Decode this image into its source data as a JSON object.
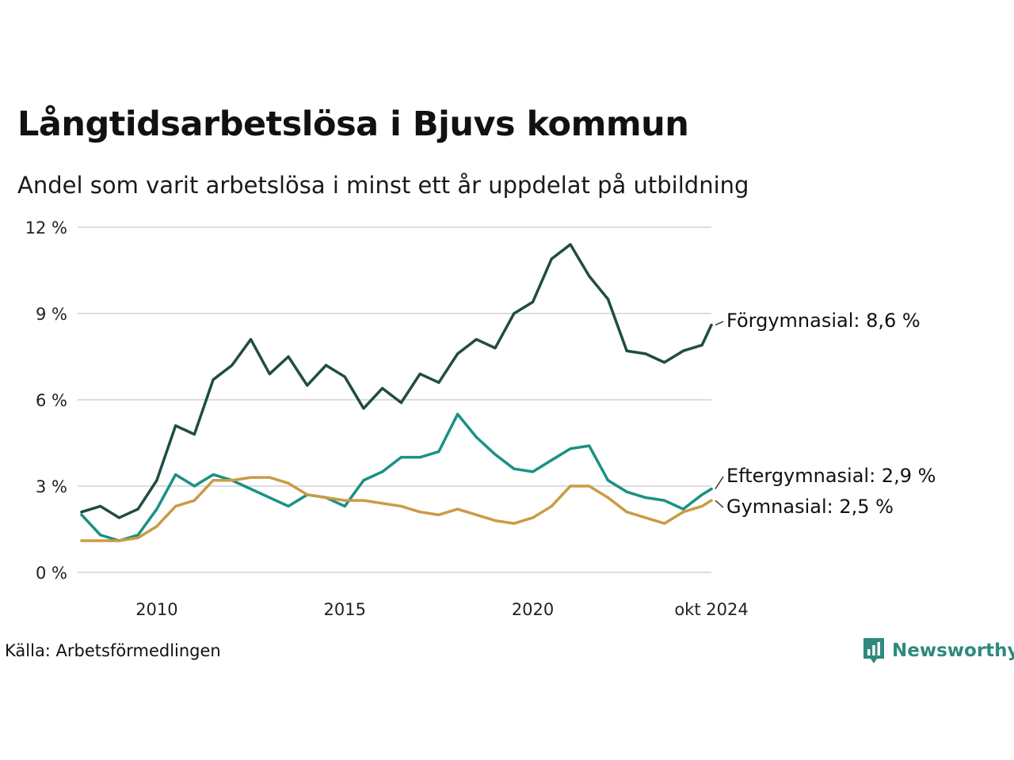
{
  "title": "Långtidsarbetslösa i Bjuvs kommun",
  "subtitle": "Andel som varit arbetslösa i minst ett år uppdelat på utbildning",
  "source": "Källa: Arbetsförmedlingen",
  "brand": {
    "name": "Newsworthy",
    "icon": "newsworthy-logo-icon",
    "color": "#2e8a7c"
  },
  "chart_data": {
    "type": "line",
    "ylim": [
      0,
      12
    ],
    "y_ticks": [
      0,
      3,
      6,
      9,
      12
    ],
    "y_tick_labels": [
      "0 %",
      "3 %",
      "6 %",
      "9 %",
      "12 %"
    ],
    "xlim": [
      "2008-01",
      "2024-10"
    ],
    "x_ticks": [
      "2010-01",
      "2015-01",
      "2020-01",
      "2024-10"
    ],
    "x_tick_labels": [
      "2010",
      "2015",
      "2020",
      "okt 2024"
    ],
    "grid": "horizontal",
    "series": [
      {
        "name": "Förgymnasial",
        "end_label": "Förgymnasial: 8,6 %",
        "color": "#1f4d44",
        "x": [
          "2008-01",
          "2008-07",
          "2009-01",
          "2009-07",
          "2010-01",
          "2010-07",
          "2011-01",
          "2011-07",
          "2012-01",
          "2012-07",
          "2013-01",
          "2013-07",
          "2014-01",
          "2014-07",
          "2015-01",
          "2015-07",
          "2016-01",
          "2016-07",
          "2017-01",
          "2017-07",
          "2018-01",
          "2018-07",
          "2019-01",
          "2019-07",
          "2020-01",
          "2020-07",
          "2021-01",
          "2021-07",
          "2022-01",
          "2022-07",
          "2023-01",
          "2023-07",
          "2024-01",
          "2024-07",
          "2024-10"
        ],
        "values": [
          2.1,
          2.3,
          1.9,
          2.2,
          3.2,
          5.1,
          4.8,
          6.7,
          7.2,
          8.1,
          6.9,
          7.5,
          6.5,
          7.2,
          6.8,
          5.7,
          6.4,
          5.9,
          6.9,
          6.6,
          7.6,
          8.1,
          7.8,
          9.0,
          9.4,
          10.9,
          11.4,
          10.3,
          9.5,
          7.7,
          7.6,
          7.3,
          7.7,
          7.9,
          8.6
        ]
      },
      {
        "name": "Eftergymnasial",
        "end_label": "Eftergymnasial: 2,9 %",
        "color": "#1a9184",
        "x": [
          "2008-01",
          "2008-07",
          "2009-01",
          "2009-07",
          "2010-01",
          "2010-07",
          "2011-01",
          "2011-07",
          "2012-01",
          "2012-07",
          "2013-01",
          "2013-07",
          "2014-01",
          "2014-07",
          "2015-01",
          "2015-07",
          "2016-01",
          "2016-07",
          "2017-01",
          "2017-07",
          "2018-01",
          "2018-07",
          "2019-01",
          "2019-07",
          "2020-01",
          "2020-07",
          "2021-01",
          "2021-07",
          "2022-01",
          "2022-07",
          "2023-01",
          "2023-07",
          "2024-01",
          "2024-07",
          "2024-10"
        ],
        "values": [
          2.0,
          1.3,
          1.1,
          1.3,
          2.2,
          3.4,
          3.0,
          3.4,
          3.2,
          2.9,
          2.6,
          2.3,
          2.7,
          2.6,
          2.3,
          3.2,
          3.5,
          4.0,
          4.0,
          4.2,
          5.5,
          4.7,
          4.1,
          3.6,
          3.5,
          3.9,
          4.3,
          4.4,
          3.2,
          2.8,
          2.6,
          2.5,
          2.2,
          2.7,
          2.9
        ]
      },
      {
        "name": "Gymnasial",
        "end_label": "Gymnasial: 2,5 %",
        "color": "#cc9a45",
        "x": [
          "2008-01",
          "2008-07",
          "2009-01",
          "2009-07",
          "2010-01",
          "2010-07",
          "2011-01",
          "2011-07",
          "2012-01",
          "2012-07",
          "2013-01",
          "2013-07",
          "2014-01",
          "2014-07",
          "2015-01",
          "2015-07",
          "2016-01",
          "2016-07",
          "2017-01",
          "2017-07",
          "2018-01",
          "2018-07",
          "2019-01",
          "2019-07",
          "2020-01",
          "2020-07",
          "2021-01",
          "2021-07",
          "2022-01",
          "2022-07",
          "2023-01",
          "2023-07",
          "2024-01",
          "2024-07",
          "2024-10"
        ],
        "values": [
          1.1,
          1.1,
          1.1,
          1.2,
          1.6,
          2.3,
          2.5,
          3.2,
          3.2,
          3.3,
          3.3,
          3.1,
          2.7,
          2.6,
          2.5,
          2.5,
          2.4,
          2.3,
          2.1,
          2.0,
          2.2,
          2.0,
          1.8,
          1.7,
          1.9,
          2.3,
          3.0,
          3.0,
          2.6,
          2.1,
          1.9,
          1.7,
          2.1,
          2.3,
          2.5
        ]
      }
    ]
  }
}
